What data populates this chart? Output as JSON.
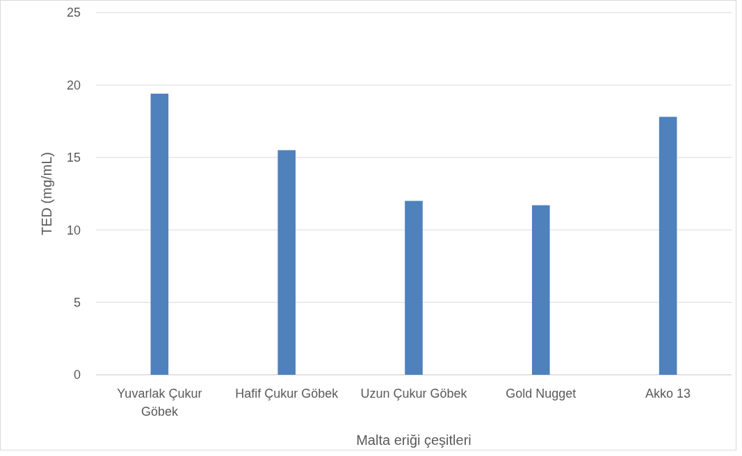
{
  "chart_data": {
    "type": "bar",
    "xlabel": "Malta eriği çeşitleri",
    "ylabel": "TED (mg/mL)",
    "categories": [
      "Yuvarlak Çukur Göbek",
      "Hafif Çukur Göbek",
      "Uzun Çukur Göbek",
      "Gold Nugget",
      "Akko 13"
    ],
    "values": [
      19.4,
      15.5,
      12.0,
      11.7,
      17.8
    ],
    "color": "#4f81bd",
    "ylim": [
      0,
      25
    ],
    "yticks": [
      0,
      5,
      10,
      15,
      20,
      25
    ],
    "grid": "y"
  }
}
